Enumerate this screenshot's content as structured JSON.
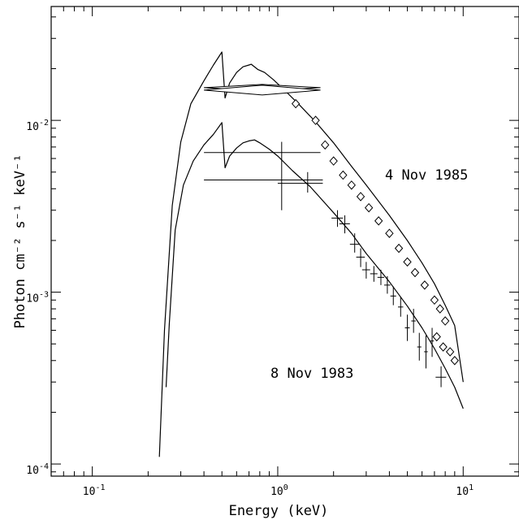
{
  "chart_data": {
    "type": "scatter",
    "title": "",
    "xlabel": "Energy (keV)",
    "ylabel": "Photon cm⁻² s⁻¹ keV⁻¹",
    "xscale": "log",
    "yscale": "log",
    "xlim": [
      0.06,
      20
    ],
    "ylim": [
      8.5e-05,
      0.046
    ],
    "x_ticks": [
      {
        "base": "10",
        "exp": "-1"
      },
      {
        "base": "10",
        "exp": "0"
      },
      {
        "base": "10",
        "exp": "1"
      }
    ],
    "y_ticks": [
      {
        "base": "10",
        "exp": "-4"
      },
      {
        "base": "10",
        "exp": "-3"
      },
      {
        "base": "10",
        "exp": "-2"
      }
    ],
    "grid": false,
    "annotations": [
      {
        "text": "4 Nov 1985",
        "series": "1985"
      },
      {
        "text": "8 Nov 1983",
        "series": "1983"
      }
    ],
    "series": [
      {
        "id": "1985",
        "marker": "diamond",
        "model_curve": [
          [
            0.23,
            0.00011
          ],
          [
            0.245,
            0.0006
          ],
          [
            0.27,
            0.0032
          ],
          [
            0.3,
            0.0075
          ],
          [
            0.34,
            0.0125
          ],
          [
            0.4,
            0.017
          ],
          [
            0.45,
            0.021
          ],
          [
            0.5,
            0.025
          ],
          [
            0.52,
            0.0135
          ],
          [
            0.55,
            0.0165
          ],
          [
            0.6,
            0.019
          ],
          [
            0.65,
            0.0205
          ],
          [
            0.7,
            0.021
          ],
          [
            0.72,
            0.0212
          ],
          [
            0.78,
            0.0198
          ],
          [
            0.85,
            0.019
          ],
          [
            0.95,
            0.0172
          ],
          [
            1.1,
            0.0148
          ],
          [
            1.3,
            0.0124
          ],
          [
            1.6,
            0.0098
          ],
          [
            2.0,
            0.0074
          ],
          [
            2.5,
            0.0054
          ],
          [
            3.0,
            0.0042
          ],
          [
            4.0,
            0.0028
          ],
          [
            5.0,
            0.002
          ],
          [
            6.0,
            0.00148
          ],
          [
            7.0,
            0.00112
          ],
          [
            8.0,
            0.00084
          ],
          [
            9.0,
            0.00064
          ],
          [
            10.0,
            0.0003
          ]
        ],
        "wide_bins": [
          {
            "x_lo": 0.4,
            "x_hi": 1.7,
            "y": 0.0155
          },
          {
            "x_lo": 0.4,
            "x_hi": 1.7,
            "y": 0.015
          }
        ],
        "points": [
          {
            "x": 1.25,
            "y": 0.0125
          },
          {
            "x": 1.6,
            "y": 0.01
          },
          {
            "x": 1.8,
            "y": 0.0072
          },
          {
            "x": 2.0,
            "y": 0.0058
          },
          {
            "x": 2.25,
            "y": 0.0048
          },
          {
            "x": 2.5,
            "y": 0.0042
          },
          {
            "x": 2.8,
            "y": 0.0036
          },
          {
            "x": 3.1,
            "y": 0.0031
          },
          {
            "x": 3.5,
            "y": 0.0026
          },
          {
            "x": 4.0,
            "y": 0.0022
          },
          {
            "x": 4.5,
            "y": 0.0018
          },
          {
            "x": 5.0,
            "y": 0.0015
          },
          {
            "x": 5.5,
            "y": 0.0013
          },
          {
            "x": 6.2,
            "y": 0.0011
          },
          {
            "x": 7.0,
            "y": 0.0009
          },
          {
            "x": 7.5,
            "y": 0.0008
          },
          {
            "x": 8.0,
            "y": 0.00068
          },
          {
            "x": 7.2,
            "y": 0.00055
          },
          {
            "x": 7.8,
            "y": 0.00048
          },
          {
            "x": 8.5,
            "y": 0.00045
          },
          {
            "x": 9.0,
            "y": 0.0004
          }
        ]
      },
      {
        "id": "1983",
        "marker": "cross",
        "model_curve": [
          [
            0.25,
            0.00028
          ],
          [
            0.26,
            0.00065
          ],
          [
            0.28,
            0.0023
          ],
          [
            0.31,
            0.0042
          ],
          [
            0.35,
            0.0058
          ],
          [
            0.4,
            0.0072
          ],
          [
            0.45,
            0.0083
          ],
          [
            0.5,
            0.0097
          ],
          [
            0.52,
            0.0053
          ],
          [
            0.55,
            0.0062
          ],
          [
            0.6,
            0.0069
          ],
          [
            0.65,
            0.0074
          ],
          [
            0.7,
            0.0076
          ],
          [
            0.75,
            0.0077
          ],
          [
            0.8,
            0.0074
          ],
          [
            0.9,
            0.0068
          ],
          [
            1.0,
            0.0062
          ],
          [
            1.2,
            0.0051
          ],
          [
            1.5,
            0.0041
          ],
          [
            2.0,
            0.0029
          ],
          [
            2.5,
            0.0022
          ],
          [
            3.0,
            0.00168
          ],
          [
            4.0,
            0.00115
          ],
          [
            5.0,
            0.00083
          ],
          [
            6.0,
            0.00062
          ],
          [
            7.0,
            0.00047
          ],
          [
            8.0,
            0.00036
          ],
          [
            9.0,
            0.00028
          ],
          [
            10.0,
            0.00021
          ]
        ],
        "points": [
          {
            "x": 1.05,
            "y": 0.0045,
            "x_lo": 0.4,
            "x_hi": 1.75,
            "y_lo": 0.003,
            "y_hi": 0.0075
          },
          {
            "x": 1.05,
            "y": 0.0065,
            "x_lo": 0.4,
            "x_hi": 1.7,
            "y_lo": 0.0065,
            "y_hi": 0.0065
          },
          {
            "x": 1.45,
            "y": 0.0043,
            "x_lo": 1.0,
            "x_hi": 1.75,
            "y_lo": 0.0038,
            "y_hi": 0.005
          },
          {
            "x": 2.1,
            "y": 0.0027,
            "x_lo": 1.95,
            "x_hi": 2.25,
            "y_lo": 0.0024,
            "y_hi": 0.003
          },
          {
            "x": 2.3,
            "y": 0.0025,
            "x_lo": 2.15,
            "x_hi": 2.45,
            "y_lo": 0.0022,
            "y_hi": 0.0028
          },
          {
            "x": 2.6,
            "y": 0.0019,
            "x_lo": 2.45,
            "x_hi": 2.75,
            "y_lo": 0.0017,
            "y_hi": 0.0022
          },
          {
            "x": 2.8,
            "y": 0.0016,
            "x_lo": 2.65,
            "x_hi": 2.95,
            "y_lo": 0.0014,
            "y_hi": 0.0018
          },
          {
            "x": 3.0,
            "y": 0.00135,
            "x_lo": 2.85,
            "x_hi": 3.15,
            "y_lo": 0.0012,
            "y_hi": 0.0015
          },
          {
            "x": 3.3,
            "y": 0.00128,
            "x_lo": 3.15,
            "x_hi": 3.45,
            "y_lo": 0.00115,
            "y_hi": 0.00142
          },
          {
            "x": 3.6,
            "y": 0.00122,
            "x_lo": 3.45,
            "x_hi": 3.75,
            "y_lo": 0.0011,
            "y_hi": 0.00135
          },
          {
            "x": 3.9,
            "y": 0.0011,
            "x_lo": 3.75,
            "x_hi": 4.05,
            "y_lo": 0.00098,
            "y_hi": 0.00124
          },
          {
            "x": 4.2,
            "y": 0.00095,
            "x_lo": 4.05,
            "x_hi": 4.35,
            "y_lo": 0.00084,
            "y_hi": 0.00108
          },
          {
            "x": 4.6,
            "y": 0.00082,
            "x_lo": 4.45,
            "x_hi": 4.75,
            "y_lo": 0.00072,
            "y_hi": 0.00094
          },
          {
            "x": 5.0,
            "y": 0.00062,
            "x_lo": 4.85,
            "x_hi": 5.15,
            "y_lo": 0.00052,
            "y_hi": 0.00074
          },
          {
            "x": 5.4,
            "y": 0.00068,
            "x_lo": 5.25,
            "x_hi": 5.55,
            "y_lo": 0.00058,
            "y_hi": 0.0008
          },
          {
            "x": 5.8,
            "y": 0.00048,
            "x_lo": 5.65,
            "x_hi": 5.95,
            "y_lo": 0.0004,
            "y_hi": 0.00058
          },
          {
            "x": 6.3,
            "y": 0.00045,
            "x_lo": 6.15,
            "x_hi": 6.45,
            "y_lo": 0.00036,
            "y_hi": 0.00056
          },
          {
            "x": 6.8,
            "y": 0.00052,
            "x_lo": 6.65,
            "x_hi": 6.95,
            "y_lo": 0.00042,
            "y_hi": 0.00062
          },
          {
            "x": 7.6,
            "y": 0.00032,
            "x_lo": 7.1,
            "x_hi": 8.1,
            "y_lo": 0.00028,
            "y_hi": 0.00037
          }
        ]
      }
    ]
  }
}
